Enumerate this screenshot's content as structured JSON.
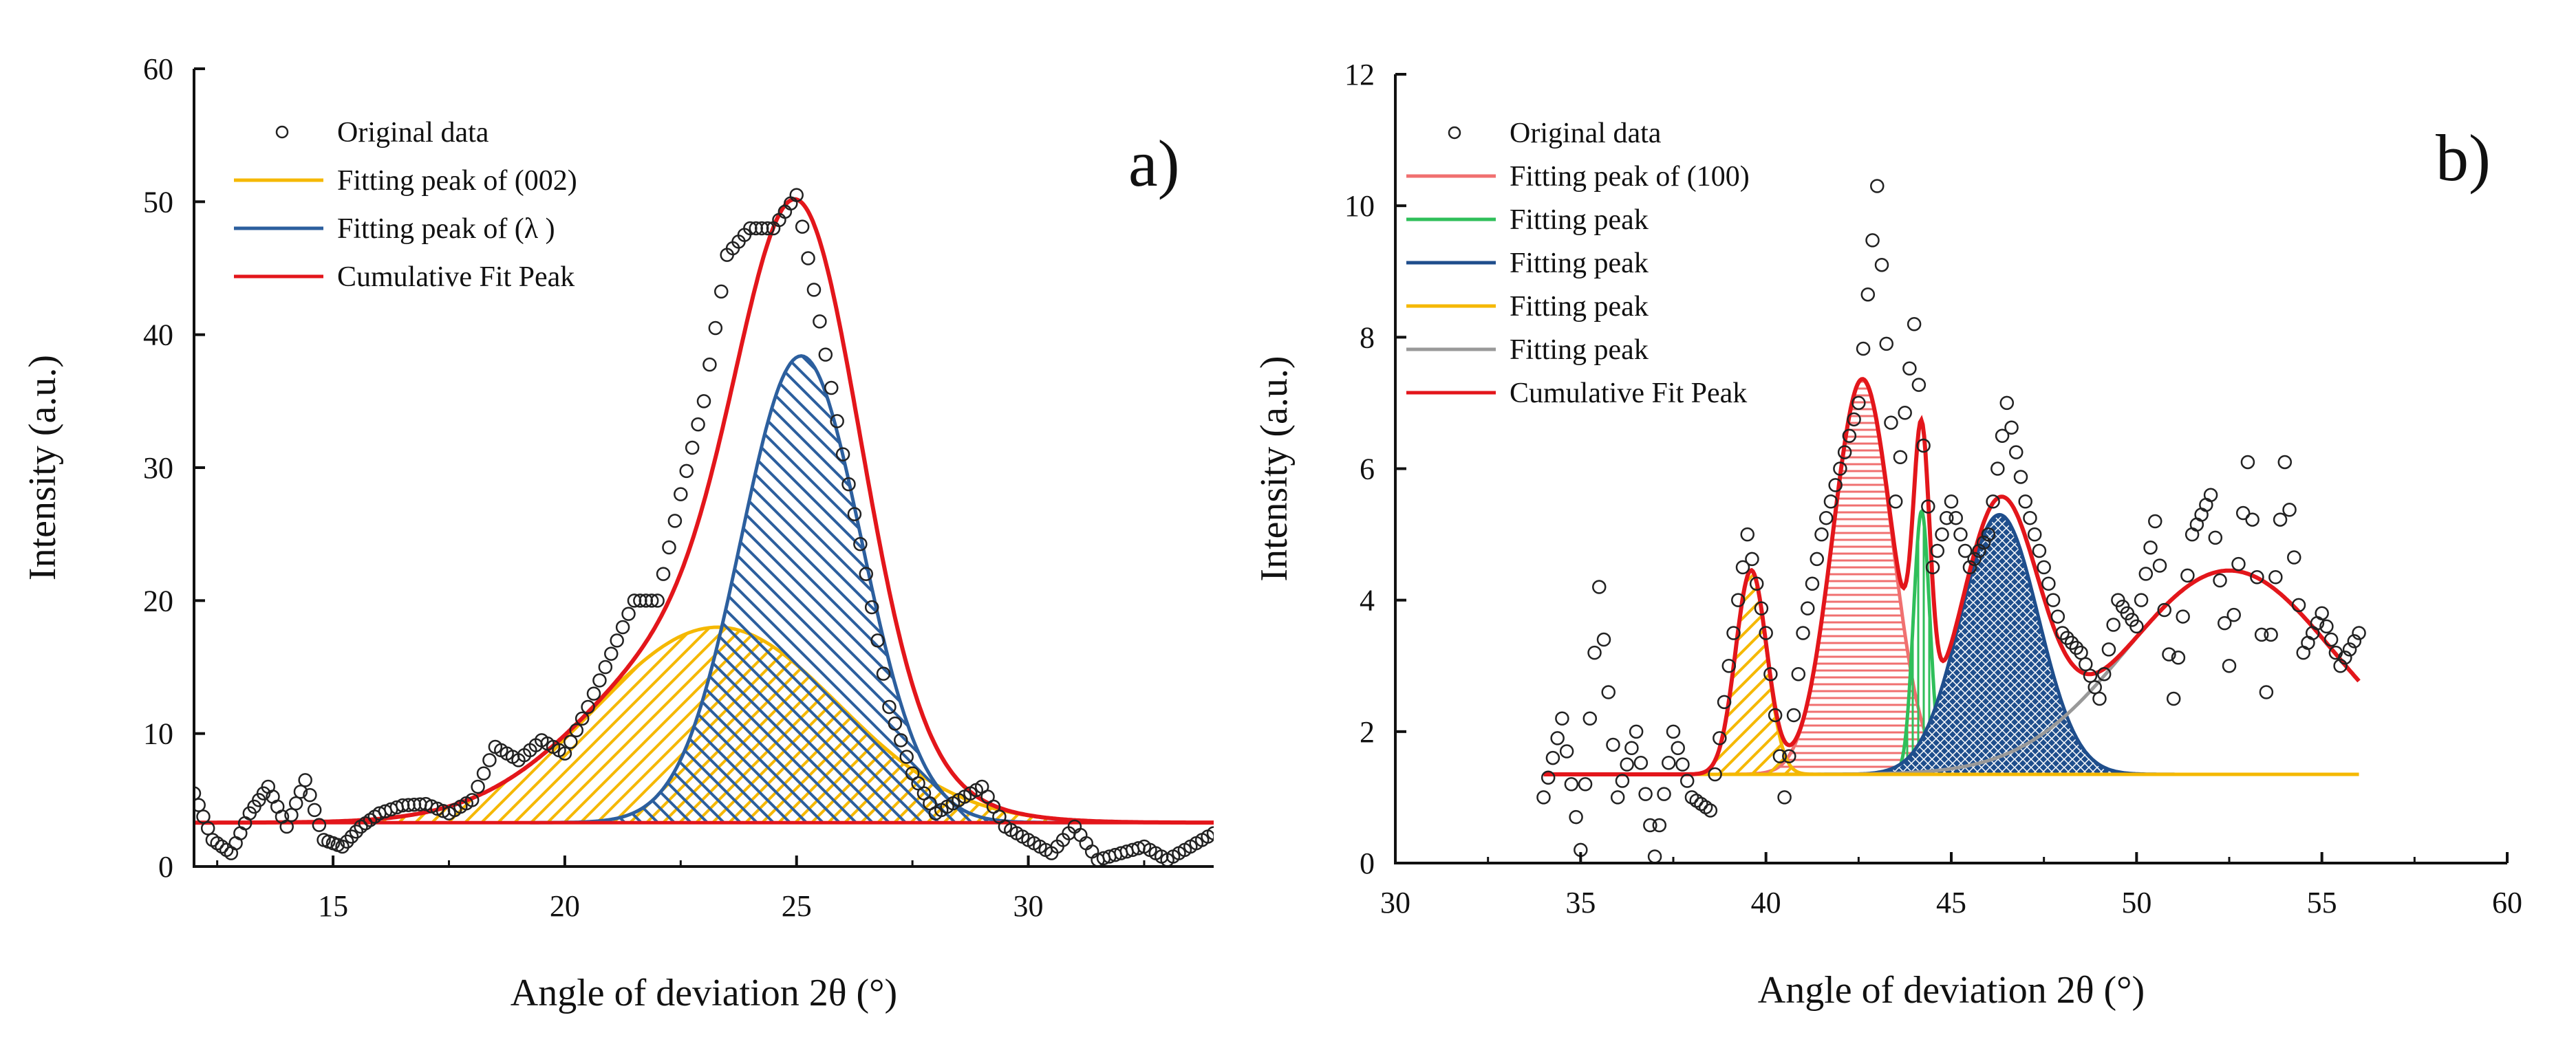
{
  "chart_data": [
    {
      "type": "line",
      "panel_label": "a)",
      "xlabel": "Angle of deviation 2θ  (°)",
      "ylabel": "Intensity (a.u.)",
      "xlim": [
        12,
        34
      ],
      "ylim": [
        0,
        60
      ],
      "xticks": [
        15,
        20,
        25,
        30
      ],
      "yticks": [
        0,
        10,
        20,
        30,
        40,
        50,
        60
      ],
      "baseline": 3.3,
      "legend_position": "top-left",
      "series": [
        {
          "name": "Original data",
          "kind": "scatter",
          "color": "#222222",
          "x": [
            12,
            12.4,
            12.8,
            13.2,
            13.6,
            14,
            14.4,
            14.8,
            15.2,
            15.6,
            16,
            16.5,
            17,
            17.5,
            18,
            18.5,
            19,
            19.5,
            20,
            20.5,
            21,
            21.5,
            22,
            22.5,
            23,
            23.5,
            24,
            24.5,
            25,
            25.5,
            26,
            26.5,
            27,
            27.5,
            28,
            28.5,
            29,
            29.5,
            30,
            30.5,
            31,
            31.5,
            32,
            32.5,
            33,
            33.5,
            34
          ],
          "y": [
            5.5,
            2,
            1,
            4,
            6,
            3,
            6.5,
            2,
            1.5,
            3,
            4,
            4.6,
            4.7,
            4,
            5,
            9,
            8,
            9.5,
            8.5,
            12,
            16,
            20,
            20,
            28,
            35,
            46,
            48,
            48,
            50.5,
            41,
            31,
            22,
            12,
            7,
            4,
            5,
            6,
            3,
            2,
            1,
            3,
            0.5,
            1,
            1.5,
            0.5,
            1.5,
            2.5
          ]
        },
        {
          "name": "Fitting peak of (002)",
          "kind": "gaussian",
          "color": "#F5B800",
          "hatch": "diagonal-up",
          "center": 23.3,
          "height": 14.7,
          "sigma": 2.6
        },
        {
          "name": "Fitting peak of (λ )",
          "kind": "gaussian",
          "color": "#2C5F9E",
          "hatch": "diagonal-down",
          "center": 25.1,
          "height": 35.1,
          "sigma": 1.3
        },
        {
          "name": "Cumulative Fit Peak",
          "kind": "sum",
          "color": "#E3161B"
        }
      ]
    },
    {
      "type": "line",
      "panel_label": "b)",
      "xlabel": "Angle of deviation 2θ  (°)",
      "ylabel": "Intensity (a.u.)",
      "xlim": [
        30,
        60
      ],
      "ylim": [
        0,
        12
      ],
      "xticks": [
        30,
        35,
        40,
        45,
        50,
        55,
        60
      ],
      "yticks": [
        0,
        2,
        4,
        6,
        8,
        10,
        12
      ],
      "baseline": 1.35,
      "fit_range": [
        34,
        56
      ],
      "legend_position": "top-left",
      "series": [
        {
          "name": "Original data",
          "kind": "scatter",
          "color": "#222222",
          "x": [
            34,
            34.5,
            35,
            35.5,
            36,
            36.5,
            37,
            37.5,
            38,
            38.5,
            39,
            39.5,
            40,
            40.5,
            41,
            41.5,
            42,
            42.5,
            43,
            43.5,
            44,
            44.5,
            45,
            45.5,
            46,
            46.5,
            47,
            47.5,
            48,
            48.5,
            49,
            49.5,
            50,
            50.5,
            51,
            51.5,
            52,
            52.5,
            53,
            53.5,
            54,
            54.5,
            55,
            55.5,
            56
          ],
          "y": [
            1,
            2.2,
            0.2,
            4.2,
            1,
            2,
            0.1,
            2,
            1,
            0.8,
            3,
            5,
            3.5,
            1,
            3.5,
            5,
            6,
            7,
            10.3,
            5.5,
            8.2,
            4.5,
            5.5,
            4.5,
            5,
            7,
            5.5,
            4.5,
            3.5,
            3.2,
            2.5,
            4,
            3.6,
            5.2,
            2.5,
            5,
            5.6,
            3,
            6.1,
            2.6,
            6.1,
            3.2,
            3.8,
            3,
            3.5
          ]
        },
        {
          "name": "Fitting peak of (100)",
          "kind": "gaussian",
          "color": "#F07070",
          "hatch": "horizontal",
          "center": 42.6,
          "height": 6.0,
          "sigma": 0.8
        },
        {
          "name": "Fitting peak",
          "kind": "gaussian",
          "color": "#2FBF5A",
          "hatch": "vertical",
          "center": 44.2,
          "height": 4.0,
          "sigma": 0.22
        },
        {
          "name": "Fitting peak",
          "kind": "gaussian",
          "color": "#1F4E8C",
          "hatch": "crosshatch",
          "center": 46.3,
          "height": 3.95,
          "sigma": 1.05
        },
        {
          "name": "Fitting peak",
          "kind": "gaussian",
          "color": "#F5B800",
          "hatch": "diagonal-up",
          "center": 39.6,
          "height": 3.1,
          "sigma": 0.42
        },
        {
          "name": "Fitting peak",
          "kind": "gaussian",
          "color": "#999999",
          "hatch": "none",
          "center": 52.5,
          "height": 3.1,
          "sigma": 2.8
        },
        {
          "name": "Cumulative Fit Peak",
          "kind": "sum",
          "color": "#E3161B"
        }
      ]
    }
  ]
}
